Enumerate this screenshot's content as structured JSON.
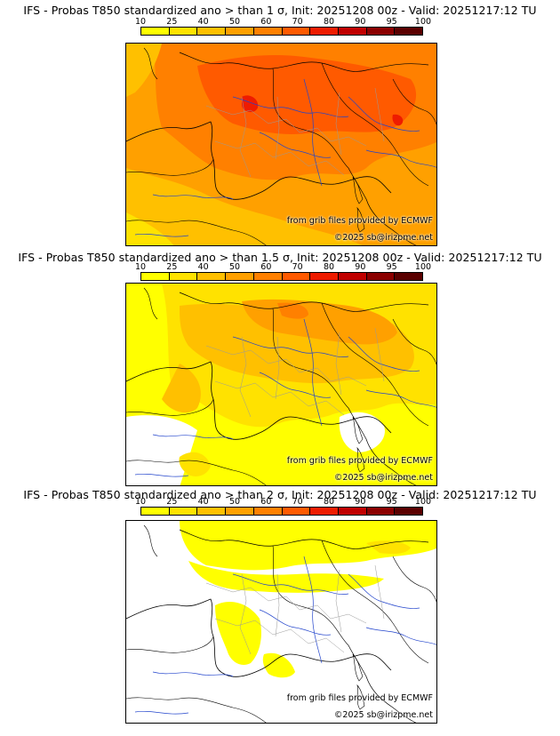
{
  "colorbar": {
    "ticks": [
      "10",
      "25",
      "40",
      "50",
      "60",
      "70",
      "80",
      "90",
      "95",
      "100"
    ],
    "colors": [
      "#ffff00",
      "#ffe200",
      "#ffc000",
      "#ffa000",
      "#ff8000",
      "#ff5a00",
      "#ee1c00",
      "#c00000",
      "#8b0000",
      "#5a0000"
    ]
  },
  "panels": [
    {
      "title": "IFS - Probas T850  standardized ano > than 1 σ, Init: 20251208 00z - Valid: 20251217:12 TU",
      "credit": "from grib files provided by ECMWF",
      "copyright": "©2025 sb@irizpme.net"
    },
    {
      "title": "IFS - Probas T850  standardized ano > than 1.5 σ, Init: 20251208 00z - Valid: 20251217:12 TU",
      "credit": "from grib files provided by ECMWF",
      "copyright": "©2025 sb@irizpme.net"
    },
    {
      "title": "IFS - Probas T850  standardized ano > than 2 σ, Init: 20251208 00z - Valid: 20251217:12 TU",
      "credit": "from grib files provided by ECMWF",
      "copyright": "©2025 sb@irizpme.net"
    }
  ]
}
